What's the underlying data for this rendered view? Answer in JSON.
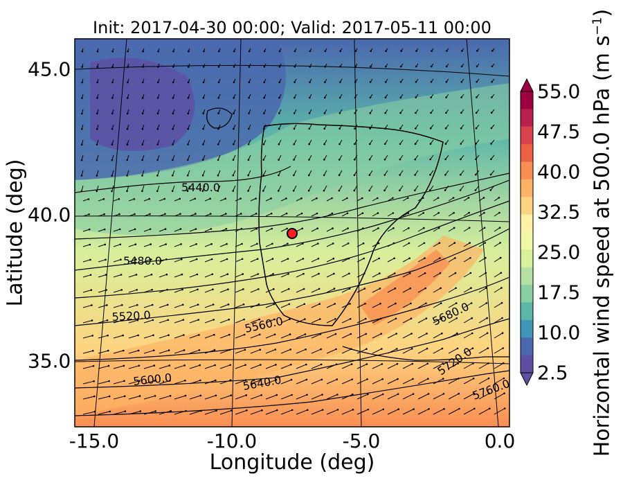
{
  "title": "Init: 2017-04-30 00:00; Valid: 2017-05-11 00:00",
  "xlabel": "Longitude (deg)",
  "ylabel": "Latitude (deg)",
  "colorbar_label": "Horizontal wind speed at 500.0 hPa (m s",
  "colorbar_unit_sup": "−1",
  "x_ticks": [
    "-15.0",
    "-10.0",
    "-5.0",
    "0.0"
  ],
  "y_ticks": [
    "45.0",
    "40.0",
    "35.0"
  ],
  "colorbar_ticks": [
    "55.0",
    "47.5",
    "40.0",
    "32.5",
    "25.0",
    "17.5",
    "10.0",
    "2.5"
  ],
  "contour_labels": [
    "5440.0",
    "5480.0",
    "5520.0",
    "5560.0",
    "5600.0",
    "5640.0",
    "5680.0",
    "5720.0",
    "5760.0"
  ],
  "colors": {
    "colormap": [
      "#5e4fa2",
      "#4a68ae",
      "#3f96b7",
      "#5cb7a9",
      "#88cfa4",
      "#b4e1a2",
      "#d8ef9b",
      "#f1f9a9",
      "#fef0a7",
      "#fed480",
      "#fdb365",
      "#f98e52",
      "#ec6145",
      "#d9444c",
      "#b8214d",
      "#9e0142"
    ],
    "marker": "#ff1f1f"
  },
  "chart_data": {
    "type": "heatmap",
    "variable": "Horizontal wind speed at 500 hPa",
    "units": "m s^-1",
    "color_range": [
      2.5,
      55.0
    ],
    "xlim": [
      -15.9,
      0.1
    ],
    "ylim": [
      32.7,
      46.0
    ],
    "marker_location": {
      "lon": -7.7,
      "lat": 39.3
    }
  }
}
